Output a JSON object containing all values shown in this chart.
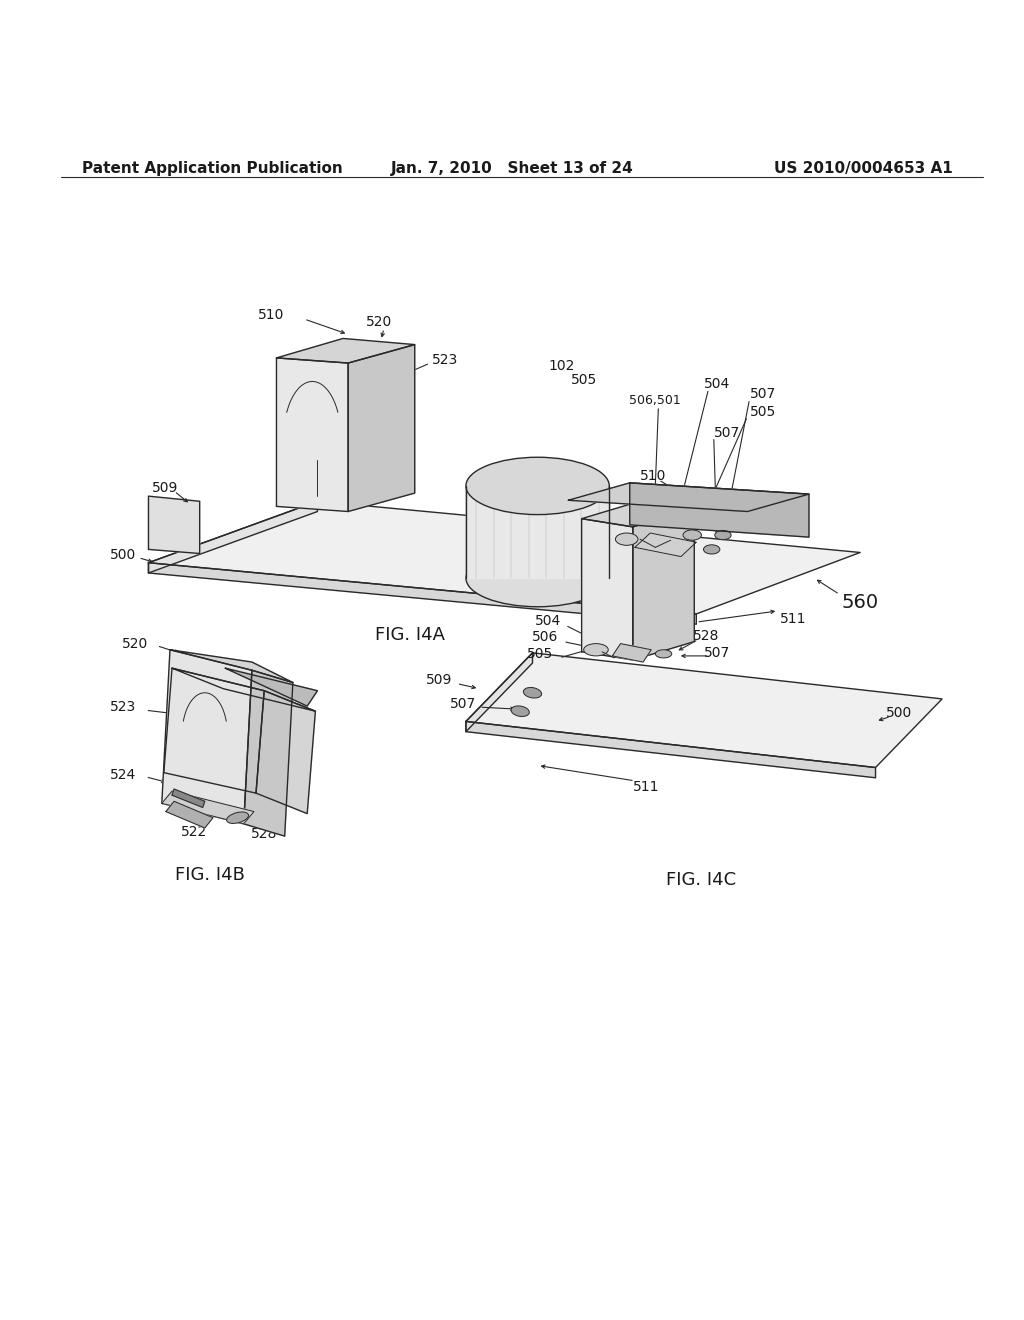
{
  "background_color": "#ffffff",
  "header_left": "Patent Application Publication",
  "header_center": "Jan. 7, 2010   Sheet 13 of 24",
  "header_right": "US 2010/0004653 A1",
  "header_font_size": 11,
  "caption_font_size": 13,
  "label_font_size": 10,
  "line_color": "#2a2a2a",
  "fig14a_caption": "FIG. I4A",
  "fig14b_caption": "FIG. I4B",
  "fig14c_caption": "FIG. I4C"
}
